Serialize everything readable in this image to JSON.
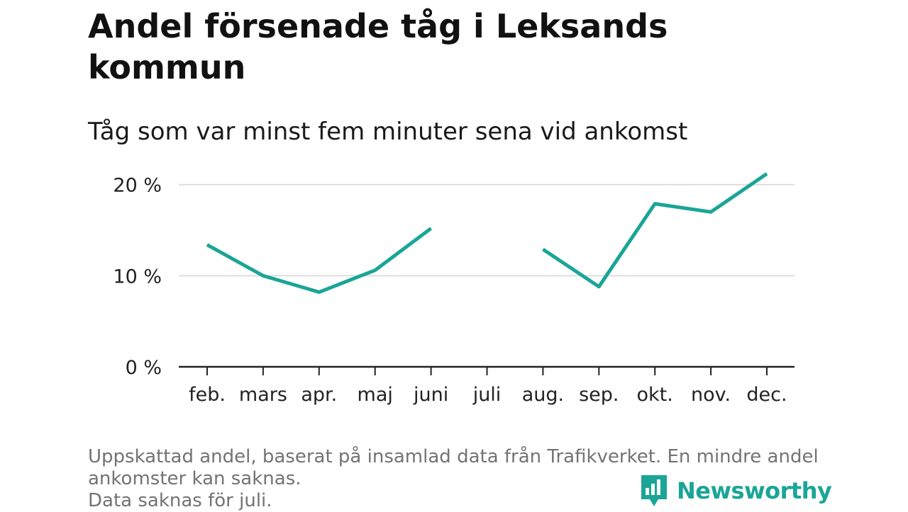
{
  "header": {
    "title": "Andel försenade tåg i Leksands kommun",
    "subtitle": "Tåg som var minst fem minuter sena vid ankomst"
  },
  "footnote": {
    "lines": [
      "Uppskattad andel, baserat på insamlad data från Trafikverket. En mindre andel",
      "ankomster kan saknas.",
      "Data saknas för juli."
    ]
  },
  "brand": {
    "name": "Newsworthy",
    "color": "#1aa596"
  },
  "colors": {
    "line": "#1aa596",
    "grid": "#dddddd",
    "axis": "#222222"
  },
  "chart_data": {
    "type": "line",
    "categories": [
      "feb.",
      "mars",
      "apr.",
      "maj",
      "juni",
      "juli",
      "aug.",
      "sep.",
      "okt.",
      "nov.",
      "dec."
    ],
    "series": [
      {
        "values": [
          13.4,
          10.0,
          8.2,
          10.6,
          15.2,
          null,
          12.9,
          8.8,
          17.9,
          17.0,
          21.2
        ]
      }
    ],
    "y_ticks": [
      0,
      10,
      20
    ],
    "y_tick_labels": [
      "0 %",
      "10 %",
      "20 %"
    ],
    "ylim": [
      0,
      22
    ],
    "grid": true,
    "xlabel": "",
    "ylabel": ""
  }
}
